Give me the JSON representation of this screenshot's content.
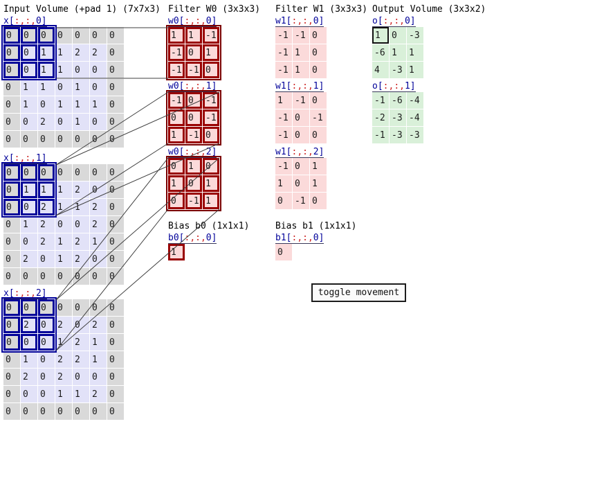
{
  "input": {
    "title": "Input Volume (+pad 1) (7x7x3)",
    "slices": [
      {
        "label": "x[:,:,0]",
        "rows": [
          [
            0,
            0,
            0,
            0,
            0,
            0,
            0
          ],
          [
            0,
            0,
            1,
            1,
            2,
            2,
            0
          ],
          [
            0,
            0,
            1,
            1,
            0,
            0,
            0
          ],
          [
            0,
            1,
            1,
            0,
            1,
            0,
            0
          ],
          [
            0,
            1,
            0,
            1,
            1,
            1,
            0
          ],
          [
            0,
            0,
            2,
            0,
            1,
            0,
            0
          ],
          [
            0,
            0,
            0,
            0,
            0,
            0,
            0
          ]
        ]
      },
      {
        "label": "x[:,:,1]",
        "rows": [
          [
            0,
            0,
            0,
            0,
            0,
            0,
            0
          ],
          [
            0,
            1,
            1,
            1,
            2,
            0,
            0
          ],
          [
            0,
            0,
            2,
            1,
            1,
            2,
            0
          ],
          [
            0,
            1,
            2,
            0,
            0,
            2,
            0
          ],
          [
            0,
            0,
            2,
            1,
            2,
            1,
            0
          ],
          [
            0,
            2,
            0,
            1,
            2,
            0,
            0
          ],
          [
            0,
            0,
            0,
            0,
            0,
            0,
            0
          ]
        ]
      },
      {
        "label": "x[:,:,2]",
        "rows": [
          [
            0,
            0,
            0,
            0,
            0,
            0,
            0
          ],
          [
            0,
            2,
            0,
            2,
            0,
            2,
            0
          ],
          [
            0,
            0,
            0,
            1,
            2,
            1,
            0
          ],
          [
            0,
            1,
            0,
            2,
            2,
            1,
            0
          ],
          [
            0,
            2,
            0,
            2,
            0,
            0,
            0
          ],
          [
            0,
            0,
            0,
            1,
            1,
            2,
            0
          ],
          [
            0,
            0,
            0,
            0,
            0,
            0,
            0
          ]
        ]
      }
    ]
  },
  "filter_w0": {
    "title": "Filter W0 (3x3x3)",
    "slices": [
      {
        "label": "w0[:,:,0]",
        "rows": [
          [
            1,
            1,
            -1
          ],
          [
            -1,
            0,
            1
          ],
          [
            -1,
            -1,
            0
          ]
        ]
      },
      {
        "label": "w0[:,:,1]",
        "rows": [
          [
            -1,
            0,
            -1
          ],
          [
            0,
            0,
            -1
          ],
          [
            1,
            -1,
            0
          ]
        ]
      },
      {
        "label": "w0[:,:,2]",
        "rows": [
          [
            0,
            1,
            0
          ],
          [
            1,
            0,
            1
          ],
          [
            0,
            -1,
            1
          ]
        ]
      }
    ]
  },
  "filter_w1": {
    "title": "Filter W1 (3x3x3)",
    "slices": [
      {
        "label": "w1[:,:,0]",
        "rows": [
          [
            -1,
            -1,
            0
          ],
          [
            -1,
            1,
            0
          ],
          [
            -1,
            1,
            0
          ]
        ]
      },
      {
        "label": "w1[:,:,1]",
        "rows": [
          [
            1,
            -1,
            0
          ],
          [
            -1,
            0,
            -1
          ],
          [
            -1,
            0,
            0
          ]
        ]
      },
      {
        "label": "w1[:,:,2]",
        "rows": [
          [
            -1,
            0,
            1
          ],
          [
            1,
            0,
            1
          ],
          [
            0,
            -1,
            0
          ]
        ]
      }
    ]
  },
  "output": {
    "title": "Output Volume (3x3x2)",
    "slices": [
      {
        "label": "o[:,:,0]",
        "rows": [
          [
            1,
            0,
            -3
          ],
          [
            -6,
            1,
            1
          ],
          [
            4,
            -3,
            1
          ]
        ]
      },
      {
        "label": "o[:,:,1]",
        "rows": [
          [
            -1,
            -6,
            -4
          ],
          [
            -2,
            -3,
            -4
          ],
          [
            -1,
            -3,
            -3
          ]
        ]
      }
    ]
  },
  "bias_b0": {
    "title": "Bias b0 (1x1x1)",
    "label": "b0[:,:,0]",
    "rows": [
      [
        1
      ]
    ]
  },
  "bias_b1": {
    "title": "Bias b1 (1x1x1)",
    "label": "b1[:,:,0]",
    "rows": [
      [
        0
      ]
    ]
  },
  "controls": {
    "toggle_button_label": "toggle movement"
  },
  "highlights": {
    "input_window": {
      "row": 0,
      "col": 0,
      "size": 3
    },
    "filter_w0_active": true,
    "bias_b0_active": true,
    "output_cell": {
      "slice": 0,
      "row": 0,
      "col": 0
    }
  },
  "colors": {
    "pad_cell": "#d9d9d9",
    "input_cell": "#e2e2f8",
    "filter_cell": "#fbdada",
    "output_cell": "#d9f0d9",
    "input_highlight_border": "#000099",
    "filter_highlight_border": "#990000",
    "output_highlight_border": "#111111",
    "label_text": "#000099",
    "label_punct": "#cc2222",
    "connector_line": "#3f3f3f"
  }
}
